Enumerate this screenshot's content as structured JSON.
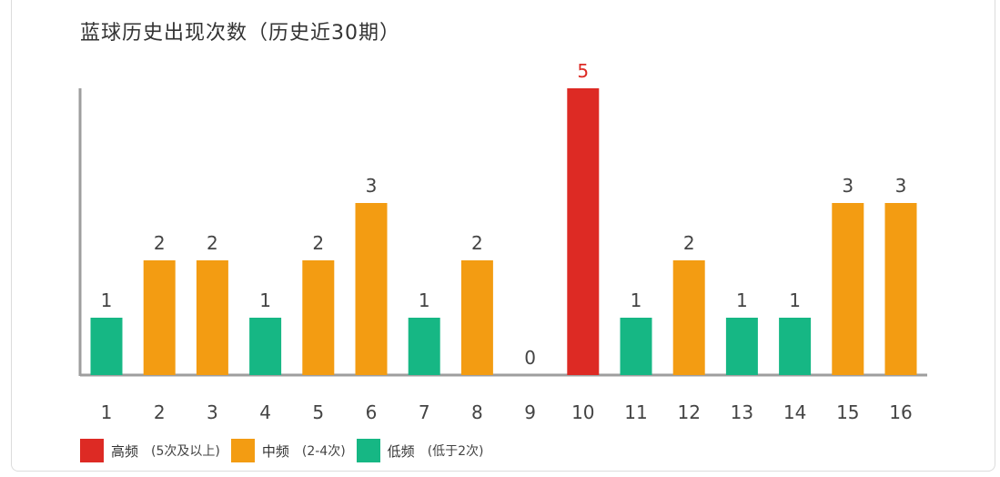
{
  "chart_data": {
    "type": "bar",
    "title": "蓝球历史出现次数（历史近30期）",
    "categories": [
      "1",
      "2",
      "3",
      "4",
      "5",
      "6",
      "7",
      "8",
      "9",
      "10",
      "11",
      "12",
      "13",
      "14",
      "15",
      "16"
    ],
    "values": [
      1,
      2,
      2,
      1,
      2,
      3,
      1,
      2,
      0,
      5,
      1,
      2,
      1,
      1,
      3,
      3
    ],
    "ylim": [
      0,
      5
    ],
    "grid": false,
    "legend_position": "bottom-left",
    "colors": {
      "high": "#dd2a24",
      "mid": "#f39c12",
      "low": "#16b784",
      "high_label": "#dd2a24",
      "default_label": "#444444",
      "axis": "#9e9e9e"
    },
    "legend": [
      {
        "key": "high",
        "label": "高频",
        "note": "(5次及以上)",
        "color": "#dd2a24"
      },
      {
        "key": "mid",
        "label": "中频",
        "note": "(2-4次)",
        "color": "#f39c12"
      },
      {
        "key": "low",
        "label": "低频",
        "note": "(低于2次)",
        "color": "#16b784"
      }
    ]
  }
}
